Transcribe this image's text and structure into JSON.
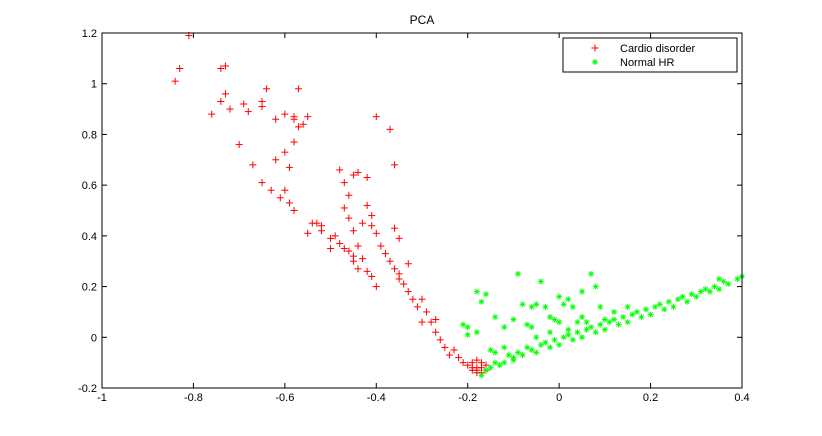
{
  "chart_data": {
    "type": "scatter",
    "title": "PCA",
    "xlabel": "",
    "ylabel": "",
    "xlim": [
      -1,
      0.4
    ],
    "ylim": [
      -0.2,
      1.2
    ],
    "xticks": [
      -1,
      -0.8,
      -0.6,
      -0.4,
      -0.2,
      0,
      0.2,
      0.4
    ],
    "xtick_labels": [
      "-1",
      "-0.8",
      "-0.6",
      "-0.4",
      "-0.2",
      "0",
      "0.2",
      "0.4"
    ],
    "yticks": [
      -0.2,
      0,
      0.2,
      0.4,
      0.6,
      0.8,
      1,
      1.2
    ],
    "ytick_labels": [
      "-0.2",
      "0",
      "0.2",
      "0.4",
      "0.6",
      "0.8",
      "1",
      "1.2"
    ],
    "grid": false,
    "legend": {
      "position": "top-right"
    },
    "series": [
      {
        "name": "Cardio disorder",
        "marker": "+",
        "color": "#ff0000",
        "points": [
          [
            -0.84,
            1.01
          ],
          [
            -0.83,
            1.06
          ],
          [
            -0.81,
            1.19
          ],
          [
            -0.74,
            1.06
          ],
          [
            -0.73,
            1.07
          ],
          [
            -0.73,
            0.96
          ],
          [
            -0.74,
            0.93
          ],
          [
            -0.76,
            0.88
          ],
          [
            -0.72,
            0.9
          ],
          [
            -0.68,
            0.89
          ],
          [
            -0.69,
            0.92
          ],
          [
            -0.65,
            0.93
          ],
          [
            -0.65,
            0.91
          ],
          [
            -0.64,
            0.98
          ],
          [
            -0.6,
            0.88
          ],
          [
            -0.58,
            0.87
          ],
          [
            -0.57,
            0.98
          ],
          [
            -0.55,
            0.87
          ],
          [
            -0.7,
            0.76
          ],
          [
            -0.67,
            0.68
          ],
          [
            -0.65,
            0.61
          ],
          [
            -0.63,
            0.58
          ],
          [
            -0.61,
            0.55
          ],
          [
            -0.6,
            0.58
          ],
          [
            -0.62,
            0.7
          ],
          [
            -0.6,
            0.73
          ],
          [
            -0.59,
            0.67
          ],
          [
            -0.58,
            0.77
          ],
          [
            -0.57,
            0.83
          ],
          [
            -0.56,
            0.84
          ],
          [
            -0.59,
            0.53
          ],
          [
            -0.58,
            0.5
          ],
          [
            -0.54,
            0.45
          ],
          [
            -0.53,
            0.45
          ],
          [
            -0.52,
            0.42
          ],
          [
            -0.5,
            0.39
          ],
          [
            -0.49,
            0.4
          ],
          [
            -0.48,
            0.37
          ],
          [
            -0.47,
            0.35
          ],
          [
            -0.46,
            0.34
          ],
          [
            -0.45,
            0.3
          ],
          [
            -0.44,
            0.27
          ],
          [
            -0.42,
            0.26
          ],
          [
            -0.41,
            0.24
          ],
          [
            -0.4,
            0.2
          ],
          [
            -0.45,
            0.32
          ],
          [
            -0.43,
            0.31
          ],
          [
            -0.48,
            0.66
          ],
          [
            -0.47,
            0.61
          ],
          [
            -0.46,
            0.56
          ],
          [
            -0.45,
            0.64
          ],
          [
            -0.44,
            0.65
          ],
          [
            -0.42,
            0.63
          ],
          [
            -0.4,
            0.87
          ],
          [
            -0.37,
            0.82
          ],
          [
            -0.36,
            0.68
          ],
          [
            -0.47,
            0.51
          ],
          [
            -0.46,
            0.47
          ],
          [
            -0.45,
            0.42
          ],
          [
            -0.44,
            0.36
          ],
          [
            -0.43,
            0.45
          ],
          [
            -0.42,
            0.52
          ],
          [
            -0.41,
            0.48
          ],
          [
            -0.41,
            0.44
          ],
          [
            -0.4,
            0.41
          ],
          [
            -0.39,
            0.36
          ],
          [
            -0.38,
            0.33
          ],
          [
            -0.37,
            0.3
          ],
          [
            -0.35,
            0.39
          ],
          [
            -0.36,
            0.27
          ],
          [
            -0.35,
            0.23
          ],
          [
            -0.34,
            0.21
          ],
          [
            -0.33,
            0.18
          ],
          [
            -0.32,
            0.15
          ],
          [
            -0.31,
            0.12
          ],
          [
            -0.3,
            0.15
          ],
          [
            -0.29,
            0.1
          ],
          [
            -0.28,
            0.06
          ],
          [
            -0.27,
            0.02
          ],
          [
            -0.26,
            -0.01
          ],
          [
            -0.25,
            -0.04
          ],
          [
            -0.24,
            -0.07
          ],
          [
            -0.23,
            -0.05
          ],
          [
            -0.22,
            -0.08
          ],
          [
            -0.21,
            -0.1
          ],
          [
            -0.2,
            -0.11
          ],
          [
            -0.19,
            -0.12
          ],
          [
            -0.18,
            -0.13
          ],
          [
            -0.17,
            -0.12
          ],
          [
            -0.18,
            -0.14
          ],
          [
            -0.17,
            -0.14
          ],
          [
            -0.19,
            -0.1
          ],
          [
            -0.18,
            -0.09
          ],
          [
            -0.16,
            -0.13
          ],
          [
            -0.17,
            -0.1
          ],
          [
            -0.18,
            -0.12
          ],
          [
            -0.19,
            -0.13
          ],
          [
            -0.16,
            -0.11
          ],
          [
            -0.36,
            0.43
          ],
          [
            -0.35,
            0.25
          ],
          [
            -0.5,
            0.35
          ],
          [
            -0.52,
            0.44
          ],
          [
            -0.55,
            0.41
          ],
          [
            -0.3,
            0.06
          ],
          [
            -0.27,
            0.07
          ],
          [
            -0.33,
            0.29
          ],
          [
            -0.62,
            0.86
          ],
          [
            -0.58,
            0.86
          ]
        ]
      },
      {
        "name": "Normal HR",
        "marker": "*",
        "color": "#00ff00",
        "points": [
          [
            -0.17,
            -0.15
          ],
          [
            -0.15,
            -0.12
          ],
          [
            -0.12,
            -0.1
          ],
          [
            -0.1,
            -0.09
          ],
          [
            -0.08,
            -0.07
          ],
          [
            -0.05,
            -0.06
          ],
          [
            -0.02,
            -0.04
          ],
          [
            0.0,
            -0.03
          ],
          [
            0.03,
            -0.01
          ],
          [
            0.05,
            0.0
          ],
          [
            0.08,
            0.02
          ],
          [
            0.1,
            0.03
          ],
          [
            0.13,
            0.05
          ],
          [
            0.15,
            0.06
          ],
          [
            0.18,
            0.08
          ],
          [
            0.2,
            0.09
          ],
          [
            0.23,
            0.11
          ],
          [
            0.25,
            0.12
          ],
          [
            0.28,
            0.14
          ],
          [
            0.3,
            0.16
          ],
          [
            0.33,
            0.18
          ],
          [
            0.35,
            0.19
          ],
          [
            0.37,
            0.21
          ],
          [
            0.39,
            0.23
          ],
          [
            -0.16,
            -0.13
          ],
          [
            -0.14,
            -0.1
          ],
          [
            -0.11,
            -0.07
          ],
          [
            -0.09,
            -0.06
          ],
          [
            -0.07,
            -0.04
          ],
          [
            -0.04,
            -0.03
          ],
          [
            -0.01,
            -0.01
          ],
          [
            0.02,
            0.01
          ],
          [
            0.04,
            0.02
          ],
          [
            0.07,
            0.04
          ],
          [
            0.09,
            0.05
          ],
          [
            0.12,
            0.07
          ],
          [
            0.14,
            0.08
          ],
          [
            0.17,
            0.1
          ],
          [
            0.19,
            0.11
          ],
          [
            0.22,
            0.13
          ],
          [
            0.24,
            0.14
          ],
          [
            0.27,
            0.16
          ],
          [
            0.29,
            0.17
          ],
          [
            0.32,
            0.19
          ],
          [
            0.34,
            0.2
          ],
          [
            -0.13,
            -0.11
          ],
          [
            -0.1,
            -0.08
          ],
          [
            -0.06,
            -0.05
          ],
          [
            -0.03,
            -0.02
          ],
          [
            0.01,
            0.0
          ],
          [
            0.06,
            0.03
          ],
          [
            0.11,
            0.06
          ],
          [
            0.16,
            0.09
          ],
          [
            0.21,
            0.12
          ],
          [
            0.26,
            0.15
          ],
          [
            0.31,
            0.18
          ],
          [
            0.36,
            0.22
          ],
          [
            -0.05,
            0.0
          ],
          [
            -0.02,
            0.02
          ],
          [
            0.02,
            0.03
          ],
          [
            0.06,
            0.06
          ],
          [
            0.1,
            0.07
          ],
          [
            -0.12,
            -0.04
          ],
          [
            -0.14,
            -0.06
          ],
          [
            -0.18,
            0.02
          ],
          [
            -0.18,
            0.18
          ],
          [
            -0.17,
            0.14
          ],
          [
            -0.16,
            0.17
          ],
          [
            -0.14,
            0.08
          ],
          [
            -0.12,
            0.04
          ],
          [
            -0.1,
            0.07
          ],
          [
            -0.09,
            0.25
          ],
          [
            -0.06,
            0.12
          ],
          [
            -0.05,
            0.13
          ],
          [
            -0.04,
            0.22
          ],
          [
            -0.03,
            0.12
          ],
          [
            -0.02,
            0.08
          ],
          [
            -0.01,
            0.07
          ],
          [
            0.0,
            0.16
          ],
          [
            0.01,
            0.13
          ],
          [
            0.02,
            0.15
          ],
          [
            0.03,
            0.12
          ],
          [
            0.05,
            0.18
          ],
          [
            0.07,
            0.25
          ],
          [
            0.09,
            0.12
          ],
          [
            0.08,
            0.2
          ],
          [
            -0.2,
            0.01
          ],
          [
            -0.21,
            0.05
          ],
          [
            -0.2,
            0.04
          ],
          [
            -0.07,
            0.05
          ],
          [
            -0.15,
            -0.05
          ],
          [
            0.12,
            0.1
          ],
          [
            0.15,
            0.12
          ],
          [
            0.35,
            0.23
          ],
          [
            0.4,
            0.24
          ],
          [
            -0.06,
            0.04
          ],
          [
            0.04,
            0.06
          ],
          [
            -0.08,
            0.13
          ],
          [
            0.0,
            0.06
          ],
          [
            0.05,
            0.08
          ]
        ]
      }
    ]
  }
}
